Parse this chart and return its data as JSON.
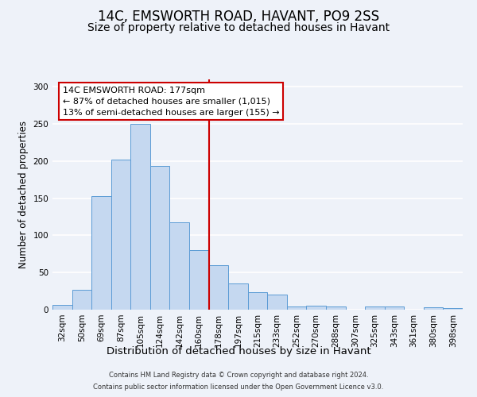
{
  "title": "14C, EMSWORTH ROAD, HAVANT, PO9 2SS",
  "subtitle": "Size of property relative to detached houses in Havant",
  "xlabel": "Distribution of detached houses by size in Havant",
  "ylabel": "Number of detached properties",
  "bar_labels": [
    "32sqm",
    "50sqm",
    "69sqm",
    "87sqm",
    "105sqm",
    "124sqm",
    "142sqm",
    "160sqm",
    "178sqm",
    "197sqm",
    "215sqm",
    "233sqm",
    "252sqm",
    "270sqm",
    "288sqm",
    "307sqm",
    "325sqm",
    "343sqm",
    "361sqm",
    "380sqm",
    "398sqm"
  ],
  "bar_values": [
    6,
    27,
    153,
    202,
    250,
    193,
    118,
    80,
    60,
    35,
    24,
    20,
    4,
    5,
    4,
    0,
    4,
    4,
    0,
    3,
    2
  ],
  "bar_color": "#c5d8f0",
  "bar_edge_color": "#5b9bd5",
  "vline_label_index": 8,
  "vline_color": "#cc0000",
  "annotation_lines": [
    "14C EMSWORTH ROAD: 177sqm",
    "← 87% of detached houses are smaller (1,015)",
    "13% of semi-detached houses are larger (155) →"
  ],
  "annotation_box_color": "#cc0000",
  "ylim": [
    0,
    310
  ],
  "yticks": [
    0,
    50,
    100,
    150,
    200,
    250,
    300
  ],
  "footnote1": "Contains HM Land Registry data © Crown copyright and database right 2024.",
  "footnote2": "Contains public sector information licensed under the Open Government Licence v3.0.",
  "background_color": "#eef2f9",
  "grid_color": "#ffffff",
  "title_fontsize": 12,
  "subtitle_fontsize": 10,
  "xlabel_fontsize": 9.5,
  "ylabel_fontsize": 8.5,
  "tick_fontsize": 7.5,
  "annot_fontsize": 8,
  "footnote_fontsize": 6
}
